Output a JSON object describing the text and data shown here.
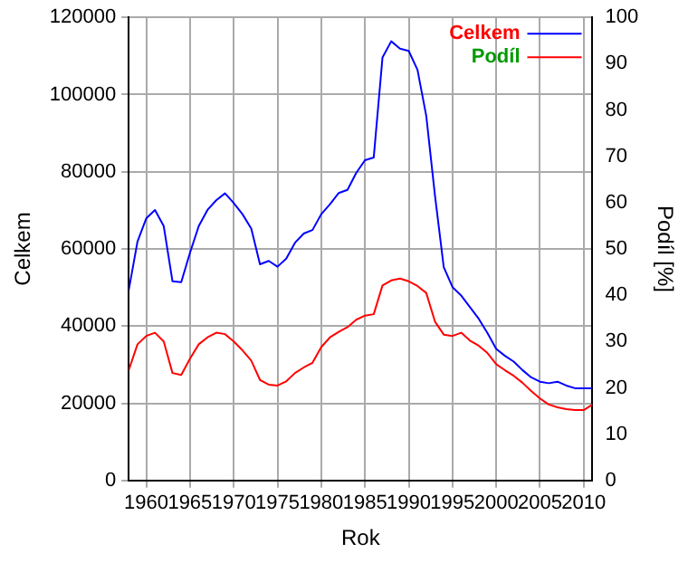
{
  "chart_data": {
    "type": "line",
    "xlabel": "Rok",
    "ylabel": "Celkem",
    "y2label": "Podíl [%]",
    "x": [
      1958,
      1959,
      1960,
      1961,
      1962,
      1963,
      1964,
      1965,
      1966,
      1967,
      1968,
      1969,
      1970,
      1971,
      1972,
      1973,
      1974,
      1975,
      1976,
      1977,
      1978,
      1979,
      1980,
      1981,
      1982,
      1983,
      1984,
      1985,
      1986,
      1987,
      1988,
      1989,
      1990,
      1991,
      1992,
      1993,
      1994,
      1995,
      1996,
      1997,
      1998,
      1999,
      2000,
      2001,
      2002,
      2003,
      2004,
      2005,
      2006,
      2007,
      2008,
      2009,
      2010,
      2011
    ],
    "series": [
      {
        "name": "Celkem",
        "color": "#0000ff",
        "values": [
          49300,
          61900,
          67900,
          70100,
          65900,
          51600,
          51400,
          59000,
          65900,
          70100,
          72600,
          74400,
          71900,
          69000,
          65300,
          56000,
          56900,
          55400,
          57500,
          61600,
          64000,
          64900,
          69000,
          71600,
          74500,
          75300,
          79700,
          83000,
          83700,
          109600,
          113800,
          111900,
          111300,
          106400,
          94500,
          73800,
          55300,
          50100,
          47900,
          44900,
          41900,
          38200,
          34100,
          32300,
          30800,
          28600,
          26700,
          25600,
          25200,
          25600,
          24600,
          23900,
          23900,
          23900
        ]
      },
      {
        "name": "Podíl",
        "color": "#ff0000",
        "axis": "y2",
        "values": [
          23.8,
          29.4,
          31.2,
          31.9,
          30.0,
          23.2,
          22.8,
          26.3,
          29.4,
          30.9,
          31.9,
          31.6,
          30.0,
          28.1,
          25.9,
          21.7,
          20.7,
          20.5,
          21.4,
          23.2,
          24.4,
          25.4,
          28.8,
          30.9,
          32.1,
          33.1,
          34.7,
          35.6,
          35.9,
          42.1,
          43.2,
          43.6,
          43.0,
          42.0,
          40.5,
          34.3,
          31.5,
          31.2,
          31.9,
          30.2,
          29.1,
          27.5,
          25.1,
          23.8,
          22.6,
          21.1,
          19.3,
          17.7,
          16.4,
          15.8,
          15.4,
          15.2,
          15.2,
          16.4
        ]
      }
    ],
    "xlim": [
      1958,
      2011
    ],
    "xticks": [
      1960,
      1965,
      1970,
      1975,
      1980,
      1985,
      1990,
      1995,
      2000,
      2005,
      2010
    ],
    "ylim": [
      0,
      120000
    ],
    "yticks": [
      0,
      20000,
      40000,
      60000,
      80000,
      100000,
      120000
    ],
    "y2lim": [
      0,
      100
    ],
    "y2ticks": [
      0,
      10,
      20,
      30,
      40,
      50,
      60,
      70,
      80,
      90,
      100
    ],
    "grid": true,
    "legend": "top right",
    "marker": "none",
    "line_style": "solid"
  }
}
